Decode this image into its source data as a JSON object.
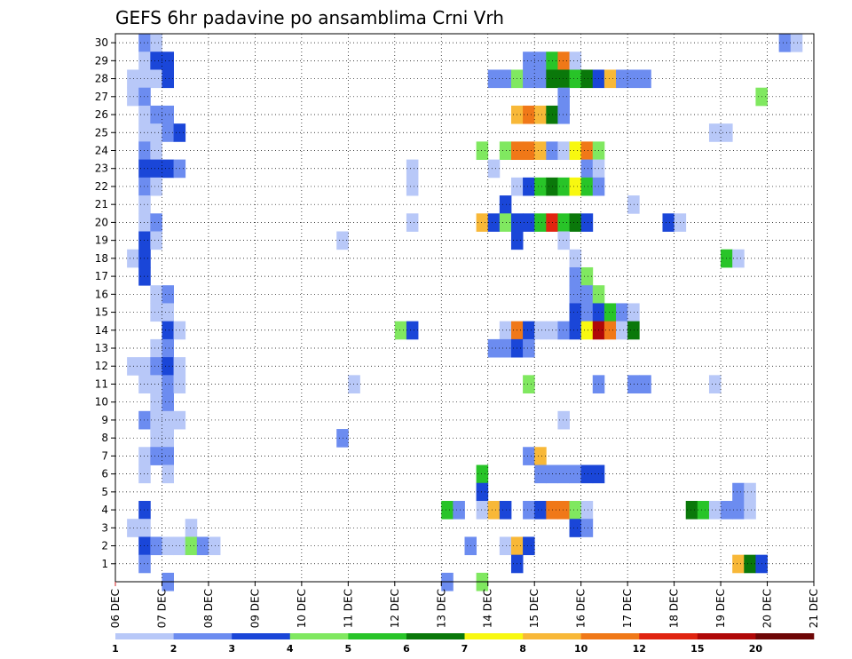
{
  "chart_data": {
    "type": "heatmap",
    "title": "GEFS 6hr padavine po ansamblima Crni Vrh",
    "xlabel": "",
    "ylabel": "",
    "x_ticks": [
      "06 DEC",
      "07 DEC",
      "08 DEC",
      "09 DEC",
      "10 DEC",
      "11 DEC",
      "12 DEC",
      "13 DEC",
      "14 DEC",
      "15 DEC",
      "16 DEC",
      "17 DEC",
      "18 DEC",
      "19 DEC",
      "20 DEC",
      "21 DEC"
    ],
    "x_range_days": [
      0,
      15
    ],
    "step_hours": 6,
    "y_ticks": [
      1,
      2,
      3,
      4,
      5,
      6,
      7,
      8,
      9,
      10,
      11,
      12,
      13,
      14,
      15,
      16,
      17,
      18,
      19,
      20,
      21,
      22,
      23,
      24,
      25,
      26,
      27,
      28,
      29,
      30
    ],
    "y_range": [
      0,
      30
    ],
    "grid": "dotted",
    "colorbar": {
      "levels": [
        "1",
        "2",
        "3",
        "4",
        "5",
        "6",
        "7",
        "8",
        "10",
        "12",
        "15",
        "20"
      ],
      "colors": [
        "#b8c8f8",
        "#6c8cf0",
        "#1a46d8",
        "#80e860",
        "#28c428",
        "#0a780a",
        "#f8f810",
        "#f8b838",
        "#f07818",
        "#e02410",
        "#b00808",
        "#6e0606"
      ]
    },
    "cells": [
      {
        "m": 30,
        "d": [
          [
            2,
            2
          ],
          [
            3,
            1
          ]
        ]
      },
      {
        "m": 29,
        "d": [
          [
            2,
            1
          ],
          [
            3,
            3
          ],
          [
            4,
            3
          ]
        ]
      },
      {
        "m": 28,
        "d": [
          [
            1,
            1
          ],
          [
            2,
            1
          ],
          [
            3,
            1
          ],
          [
            4,
            3
          ]
        ]
      },
      {
        "m": 27,
        "d": [
          [
            1,
            1
          ],
          [
            2,
            2
          ]
        ]
      },
      {
        "m": 26,
        "d": [
          [
            2,
            1
          ],
          [
            3,
            2
          ],
          [
            4,
            2
          ]
        ]
      },
      {
        "m": 25,
        "d": [
          [
            2,
            1
          ],
          [
            3,
            1
          ],
          [
            4,
            2
          ],
          [
            5,
            3
          ]
        ]
      },
      {
        "m": 24,
        "d": [
          [
            2,
            2
          ],
          [
            3,
            1
          ]
        ]
      },
      {
        "m": 23,
        "d": [
          [
            2,
            3
          ],
          [
            3,
            3
          ],
          [
            4,
            3
          ],
          [
            5,
            2
          ]
        ]
      },
      {
        "m": 22,
        "d": [
          [
            2,
            2
          ],
          [
            3,
            1
          ]
        ]
      },
      {
        "m": 21,
        "d": [
          [
            2,
            1
          ]
        ]
      },
      {
        "m": 20,
        "d": [
          [
            2,
            1
          ],
          [
            3,
            2
          ]
        ]
      },
      {
        "m": 19,
        "d": [
          [
            2,
            3
          ],
          [
            3,
            1
          ]
        ]
      },
      {
        "m": 18,
        "d": [
          [
            1,
            1
          ],
          [
            2,
            3
          ]
        ]
      },
      {
        "m": 17,
        "d": [
          [
            2,
            3
          ]
        ]
      },
      {
        "m": 16,
        "d": [
          [
            3,
            1
          ],
          [
            4,
            2
          ]
        ]
      },
      {
        "m": 15,
        "d": [
          [
            3,
            1
          ],
          [
            4,
            1
          ]
        ]
      },
      {
        "m": 14,
        "d": [
          [
            4,
            3
          ],
          [
            5,
            1
          ]
        ]
      },
      {
        "m": 13,
        "d": [
          [
            3,
            1
          ],
          [
            4,
            2
          ]
        ]
      },
      {
        "m": 12,
        "d": [
          [
            1,
            1
          ],
          [
            2,
            1
          ],
          [
            3,
            2
          ],
          [
            4,
            3
          ],
          [
            5,
            1
          ]
        ]
      },
      {
        "m": 11,
        "d": [
          [
            2,
            1
          ],
          [
            3,
            1
          ],
          [
            4,
            2
          ],
          [
            5,
            1
          ]
        ]
      },
      {
        "m": 10,
        "d": [
          [
            3,
            1
          ],
          [
            4,
            2
          ]
        ]
      },
      {
        "m": 9,
        "d": [
          [
            2,
            2
          ],
          [
            3,
            1
          ],
          [
            4,
            1
          ],
          [
            5,
            1
          ]
        ]
      },
      {
        "m": 8,
        "d": [
          [
            3,
            1
          ],
          [
            4,
            1
          ]
        ]
      },
      {
        "m": 7,
        "d": [
          [
            2,
            1
          ],
          [
            3,
            2
          ],
          [
            4,
            2
          ]
        ]
      },
      {
        "m": 6,
        "d": [
          [
            2,
            1
          ],
          [
            4,
            1
          ]
        ]
      },
      {
        "m": 5,
        "d": []
      },
      {
        "m": 4,
        "d": [
          [
            2,
            3
          ]
        ]
      },
      {
        "m": 3,
        "d": [
          [
            1,
            1
          ],
          [
            2,
            1
          ],
          [
            6,
            1
          ]
        ]
      },
      {
        "m": 2,
        "d": [
          [
            2,
            3
          ],
          [
            3,
            2
          ],
          [
            4,
            1
          ],
          [
            5,
            1
          ],
          [
            6,
            4
          ],
          [
            7,
            2
          ],
          [
            8,
            1
          ]
        ]
      },
      {
        "m": 1,
        "d": [
          [
            2,
            2
          ]
        ]
      },
      {
        "m": 0,
        "d": [
          [
            4,
            2
          ]
        ]
      },
      {
        "m": 30,
        "d": [
          [
            57,
            2
          ],
          [
            58,
            1
          ]
        ]
      },
      {
        "m": 29,
        "d": [
          [
            35,
            2
          ],
          [
            36,
            2
          ],
          [
            37,
            5
          ],
          [
            38,
            9
          ],
          [
            39,
            1
          ]
        ]
      },
      {
        "m": 28,
        "d": [
          [
            32,
            2
          ],
          [
            33,
            2
          ],
          [
            34,
            4
          ],
          [
            35,
            2
          ],
          [
            36,
            2
          ],
          [
            37,
            6
          ],
          [
            38,
            6
          ],
          [
            39,
            5
          ],
          [
            40,
            6
          ],
          [
            41,
            3
          ],
          [
            42,
            8
          ],
          [
            43,
            2
          ],
          [
            44,
            2
          ],
          [
            45,
            2
          ]
        ]
      },
      {
        "m": 27,
        "d": [
          [
            38,
            2
          ],
          [
            55,
            4
          ]
        ]
      },
      {
        "m": 26,
        "d": [
          [
            34,
            8
          ],
          [
            35,
            9
          ],
          [
            36,
            8
          ],
          [
            37,
            6
          ],
          [
            38,
            2
          ]
        ]
      },
      {
        "m": 25,
        "d": [
          [
            51,
            1
          ],
          [
            52,
            1
          ]
        ]
      },
      {
        "m": 24,
        "d": [
          [
            31,
            4
          ],
          [
            33,
            4
          ],
          [
            34,
            9
          ],
          [
            35,
            9
          ],
          [
            36,
            8
          ],
          [
            37,
            2
          ],
          [
            38,
            1
          ],
          [
            39,
            7
          ],
          [
            40,
            9
          ],
          [
            41,
            4
          ]
        ]
      },
      {
        "m": 23,
        "d": [
          [
            25,
            1
          ],
          [
            32,
            1
          ],
          [
            40,
            2
          ],
          [
            41,
            1
          ]
        ]
      },
      {
        "m": 22,
        "d": [
          [
            25,
            1
          ],
          [
            34,
            1
          ],
          [
            35,
            3
          ],
          [
            36,
            5
          ],
          [
            37,
            6
          ],
          [
            38,
            5
          ],
          [
            39,
            7
          ],
          [
            40,
            5
          ],
          [
            41,
            2
          ]
        ]
      },
      {
        "m": 21,
        "d": [
          [
            33,
            3
          ],
          [
            44,
            1
          ]
        ]
      },
      {
        "m": 20,
        "d": [
          [
            25,
            1
          ],
          [
            31,
            8
          ],
          [
            32,
            3
          ],
          [
            33,
            4
          ],
          [
            34,
            3
          ],
          [
            35,
            3
          ],
          [
            36,
            5
          ],
          [
            37,
            10
          ],
          [
            38,
            5
          ],
          [
            39,
            6
          ],
          [
            40,
            3
          ],
          [
            47,
            3
          ],
          [
            48,
            1
          ]
        ]
      },
      {
        "m": 19,
        "d": [
          [
            19,
            1
          ],
          [
            34,
            3
          ],
          [
            38,
            1
          ]
        ]
      },
      {
        "m": 18,
        "d": [
          [
            39,
            1
          ],
          [
            52,
            5
          ],
          [
            53,
            1
          ]
        ]
      },
      {
        "m": 17,
        "d": [
          [
            39,
            2
          ],
          [
            40,
            4
          ]
        ]
      },
      {
        "m": 16,
        "d": [
          [
            39,
            2
          ],
          [
            40,
            2
          ],
          [
            41,
            4
          ]
        ]
      },
      {
        "m": 15,
        "d": [
          [
            39,
            3
          ],
          [
            40,
            2
          ],
          [
            41,
            3
          ],
          [
            42,
            5
          ],
          [
            43,
            2
          ],
          [
            44,
            1
          ]
        ]
      },
      {
        "m": 14,
        "d": [
          [
            24,
            4
          ],
          [
            25,
            3
          ],
          [
            33,
            1
          ],
          [
            34,
            9
          ],
          [
            35,
            3
          ],
          [
            36,
            1
          ],
          [
            37,
            1
          ],
          [
            38,
            2
          ],
          [
            39,
            3
          ],
          [
            40,
            7
          ],
          [
            41,
            11
          ],
          [
            42,
            9
          ],
          [
            43,
            1
          ],
          [
            44,
            6
          ]
        ]
      },
      {
        "m": 13,
        "d": [
          [
            32,
            2
          ],
          [
            33,
            2
          ],
          [
            34,
            3
          ],
          [
            35,
            2
          ]
        ]
      },
      {
        "m": 11,
        "d": [
          [
            20,
            1
          ],
          [
            35,
            4
          ],
          [
            41,
            2
          ],
          [
            44,
            2
          ],
          [
            45,
            2
          ],
          [
            51,
            1
          ]
        ]
      },
      {
        "m": 9,
        "d": [
          [
            38,
            1
          ]
        ]
      },
      {
        "m": 8,
        "d": [
          [
            19,
            2
          ]
        ]
      },
      {
        "m": 7,
        "d": [
          [
            35,
            2
          ],
          [
            36,
            8
          ]
        ]
      },
      {
        "m": 6,
        "d": [
          [
            31,
            5
          ],
          [
            36,
            2
          ],
          [
            37,
            2
          ],
          [
            38,
            2
          ],
          [
            39,
            2
          ],
          [
            40,
            3
          ],
          [
            41,
            3
          ]
        ]
      },
      {
        "m": 5,
        "d": [
          [
            31,
            3
          ],
          [
            53,
            2
          ],
          [
            54,
            1
          ]
        ]
      },
      {
        "m": 4,
        "d": [
          [
            28,
            5
          ],
          [
            29,
            2
          ],
          [
            31,
            1
          ],
          [
            32,
            8
          ],
          [
            33,
            3
          ],
          [
            35,
            2
          ],
          [
            36,
            3
          ],
          [
            37,
            9
          ],
          [
            38,
            9
          ],
          [
            39,
            4
          ],
          [
            40,
            1
          ],
          [
            49,
            6
          ],
          [
            50,
            5
          ],
          [
            51,
            1
          ],
          [
            52,
            2
          ],
          [
            53,
            2
          ],
          [
            54,
            1
          ]
        ]
      },
      {
        "m": 3,
        "d": [
          [
            39,
            3
          ],
          [
            40,
            2
          ]
        ]
      },
      {
        "m": 2,
        "d": [
          [
            30,
            2
          ],
          [
            33,
            1
          ],
          [
            34,
            8
          ],
          [
            35,
            3
          ]
        ]
      },
      {
        "m": 1,
        "d": [
          [
            34,
            3
          ],
          [
            53,
            8
          ],
          [
            54,
            6
          ],
          [
            55,
            3
          ]
        ]
      },
      {
        "m": 0,
        "d": [
          [
            28,
            2
          ],
          [
            31,
            4
          ]
        ]
      }
    ]
  }
}
